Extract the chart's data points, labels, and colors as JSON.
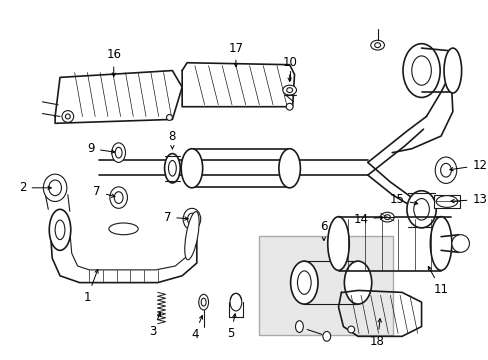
{
  "background_color": "#ffffff",
  "line_color": "#1a1a1a",
  "fig_width": 4.89,
  "fig_height": 3.6,
  "dpi": 100,
  "label_fontsize": 8.5,
  "box6_color": "#e8e8e8",
  "box6_edge": "#aaaaaa"
}
